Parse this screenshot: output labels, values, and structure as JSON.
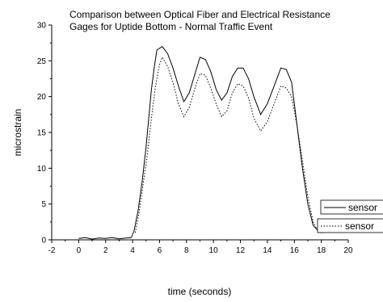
{
  "chart_data": {
    "type": "line",
    "title_lines": [
      "Comparison between Optical Fiber and Electrical Resistance",
      "Gages for Uptide Bottom - Normal Traffic Event"
    ],
    "xlabel": "time (seconds)",
    "ylabel": "microstrain",
    "xlim": [
      -2,
      20
    ],
    "ylim": [
      0,
      30
    ],
    "xticks": [
      "-2",
      "0",
      "2",
      "4",
      "6",
      "8",
      "10",
      "12",
      "14",
      "16",
      "18",
      "20"
    ],
    "yticks": [
      "0",
      "5",
      "10",
      "15",
      "20",
      "25",
      "30"
    ],
    "legend_position": "right (clipped)",
    "series": [
      {
        "name": "sensor",
        "style": "solid",
        "color": "#000000",
        "points": [
          [
            0,
            0.2
          ],
          [
            0.5,
            0.3
          ],
          [
            1,
            0.1
          ],
          [
            1.5,
            0.25
          ],
          [
            2,
            0.2
          ],
          [
            2.5,
            0.3
          ],
          [
            3,
            0.15
          ],
          [
            3.5,
            0.25
          ],
          [
            3.9,
            0.3
          ],
          [
            4.1,
            1.2
          ],
          [
            4.4,
            4
          ],
          [
            4.7,
            8
          ],
          [
            5,
            13
          ],
          [
            5.2,
            17
          ],
          [
            5.4,
            21
          ],
          [
            5.6,
            24
          ],
          [
            5.8,
            26.5
          ],
          [
            6.2,
            27
          ],
          [
            6.6,
            26
          ],
          [
            7,
            24
          ],
          [
            7.4,
            21.5
          ],
          [
            7.8,
            19.3
          ],
          [
            8.2,
            20.5
          ],
          [
            8.6,
            23
          ],
          [
            9,
            25.5
          ],
          [
            9.4,
            25.2
          ],
          [
            9.8,
            23.5
          ],
          [
            10.2,
            21
          ],
          [
            10.6,
            19.5
          ],
          [
            11,
            20.5
          ],
          [
            11.4,
            22.8
          ],
          [
            11.8,
            24
          ],
          [
            12.2,
            24
          ],
          [
            12.6,
            22.5
          ],
          [
            13,
            20
          ],
          [
            13.5,
            17.5
          ],
          [
            14,
            19
          ],
          [
            14.5,
            21.5
          ],
          [
            15,
            24
          ],
          [
            15.4,
            23.8
          ],
          [
            15.8,
            22
          ],
          [
            16.2,
            16
          ],
          [
            16.6,
            10
          ],
          [
            17,
            5
          ],
          [
            17.4,
            2
          ],
          [
            17.8,
            1.2
          ],
          [
            18.2,
            1.1
          ]
        ]
      },
      {
        "name": "sensor",
        "style": "dotted",
        "color": "#000000",
        "points": [
          [
            4.2,
            1
          ],
          [
            4.5,
            4
          ],
          [
            4.8,
            8
          ],
          [
            5.1,
            12
          ],
          [
            5.4,
            17
          ],
          [
            5.7,
            21.5
          ],
          [
            6,
            24.5
          ],
          [
            6.2,
            25.5
          ],
          [
            6.6,
            24.2
          ],
          [
            7,
            22
          ],
          [
            7.4,
            19
          ],
          [
            7.8,
            17.2
          ],
          [
            8.2,
            18.5
          ],
          [
            8.6,
            21
          ],
          [
            9,
            23.2
          ],
          [
            9.4,
            23
          ],
          [
            9.8,
            21.2
          ],
          [
            10.2,
            19
          ],
          [
            10.6,
            17.2
          ],
          [
            11,
            18
          ],
          [
            11.4,
            20.5
          ],
          [
            11.8,
            21.8
          ],
          [
            12.2,
            21.5
          ],
          [
            12.6,
            19.8
          ],
          [
            13,
            17
          ],
          [
            13.5,
            15.2
          ],
          [
            14,
            16.5
          ],
          [
            14.5,
            19
          ],
          [
            15,
            21.5
          ],
          [
            15.4,
            21.2
          ],
          [
            15.8,
            20
          ],
          [
            16.2,
            16
          ],
          [
            16.6,
            11
          ],
          [
            17,
            6
          ],
          [
            17.4,
            2.5
          ],
          [
            17.8,
            1
          ],
          [
            18.2,
            1
          ]
        ]
      }
    ]
  }
}
